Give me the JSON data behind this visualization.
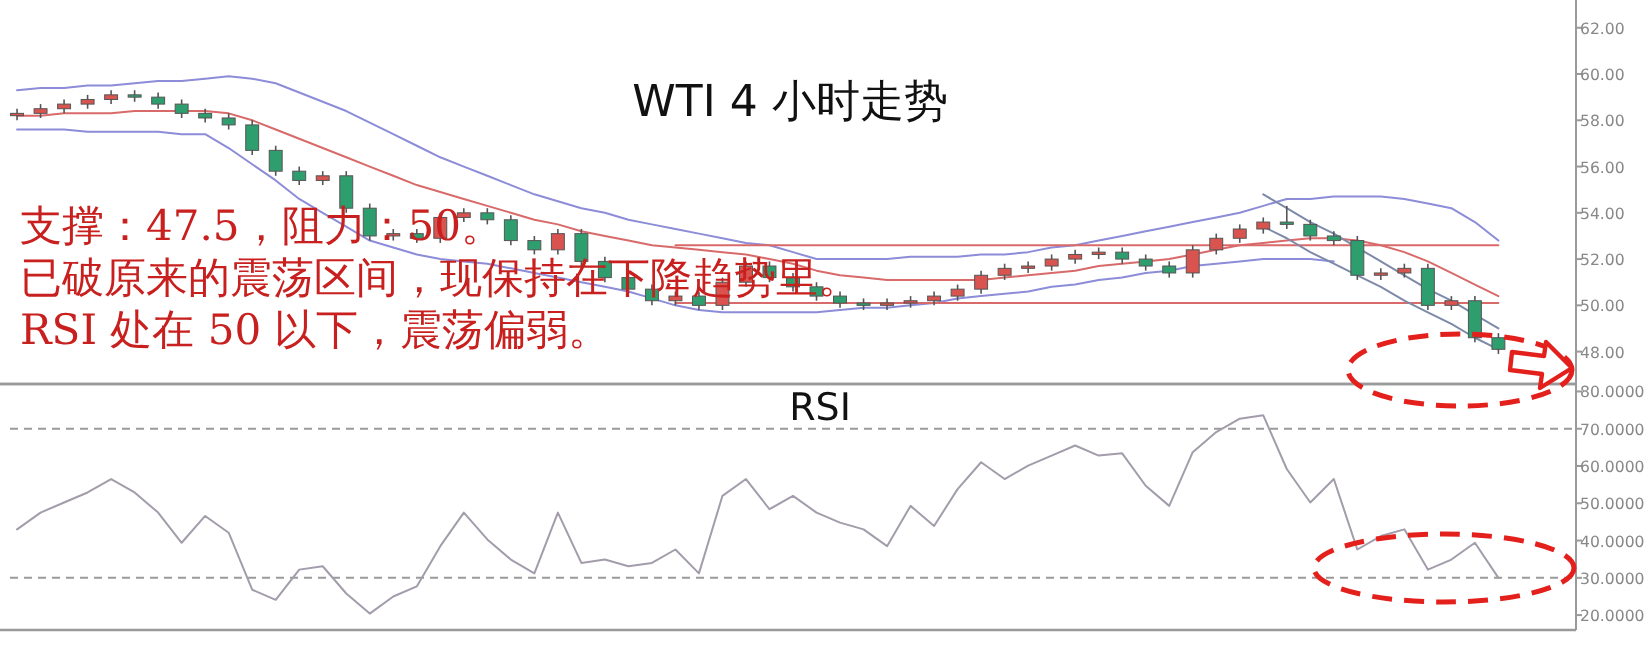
{
  "chart_data": [
    {
      "type": "candlestick",
      "title": "WTI 4 小时走势",
      "tick_labels": "y",
      "grid": false,
      "categories": [
        null,
        null,
        null,
        null,
        null,
        null,
        null,
        null,
        null,
        null,
        null,
        null,
        null,
        null,
        null,
        null,
        null,
        null,
        null,
        null,
        null,
        null,
        null,
        null,
        null,
        null,
        null,
        null,
        null,
        null,
        null,
        null,
        null,
        null,
        null,
        null,
        null,
        null,
        null,
        null,
        null,
        null,
        null,
        null,
        null,
        null,
        null,
        null,
        null,
        null,
        null,
        null,
        null,
        null,
        null,
        null,
        null,
        null,
        null,
        null,
        null,
        null,
        null,
        null
      ],
      "ohlc": [
        [
          58.2,
          58.5,
          58.0,
          58.3
        ],
        [
          58.3,
          58.7,
          58.1,
          58.5
        ],
        [
          58.5,
          58.9,
          58.3,
          58.7
        ],
        [
          58.7,
          59.1,
          58.5,
          58.9
        ],
        [
          58.9,
          59.3,
          58.7,
          59.1
        ],
        [
          59.1,
          59.3,
          58.8,
          59.0
        ],
        [
          59.0,
          59.2,
          58.5,
          58.7
        ],
        [
          58.7,
          58.9,
          58.1,
          58.3
        ],
        [
          58.3,
          58.5,
          57.9,
          58.1
        ],
        [
          58.1,
          58.3,
          57.6,
          57.8
        ],
        [
          57.8,
          58.0,
          56.5,
          56.7
        ],
        [
          56.7,
          56.9,
          55.6,
          55.8
        ],
        [
          55.8,
          56.0,
          55.2,
          55.4
        ],
        [
          55.4,
          55.8,
          55.2,
          55.6
        ],
        [
          55.6,
          55.8,
          54.0,
          54.2
        ],
        [
          54.2,
          54.4,
          52.8,
          53.0
        ],
        [
          53.0,
          53.3,
          52.8,
          53.1
        ],
        [
          53.1,
          53.3,
          52.7,
          52.9
        ],
        [
          52.9,
          54.0,
          52.7,
          53.8
        ],
        [
          53.8,
          54.2,
          53.6,
          54.0
        ],
        [
          54.0,
          54.2,
          53.5,
          53.7
        ],
        [
          53.7,
          53.9,
          52.6,
          52.8
        ],
        [
          52.8,
          53.0,
          52.2,
          52.4
        ],
        [
          52.4,
          53.3,
          52.2,
          53.1
        ],
        [
          53.1,
          53.3,
          51.7,
          51.9
        ],
        [
          51.9,
          52.1,
          51.0,
          51.2
        ],
        [
          51.2,
          51.4,
          50.5,
          50.7
        ],
        [
          50.7,
          50.9,
          50.0,
          50.2
        ],
        [
          50.2,
          50.6,
          50.0,
          50.4
        ],
        [
          50.4,
          50.6,
          49.8,
          50.0
        ],
        [
          50.0,
          51.2,
          49.8,
          51.0
        ],
        [
          51.0,
          51.9,
          50.8,
          51.7
        ],
        [
          51.7,
          51.9,
          51.0,
          51.2
        ],
        [
          51.2,
          51.4,
          50.6,
          50.8
        ],
        [
          50.8,
          51.0,
          50.2,
          50.4
        ],
        [
          50.4,
          50.6,
          49.9,
          50.1
        ],
        [
          50.1,
          50.3,
          49.8,
          50.0
        ],
        [
          50.0,
          50.3,
          49.8,
          50.1
        ],
        [
          50.1,
          50.4,
          49.9,
          50.2
        ],
        [
          50.2,
          50.6,
          50.0,
          50.4
        ],
        [
          50.4,
          50.9,
          50.2,
          50.7
        ],
        [
          50.7,
          51.5,
          50.5,
          51.3
        ],
        [
          51.3,
          51.8,
          51.1,
          51.6
        ],
        [
          51.6,
          51.9,
          51.4,
          51.7
        ],
        [
          51.7,
          52.2,
          51.5,
          52.0
        ],
        [
          52.0,
          52.4,
          51.8,
          52.2
        ],
        [
          52.2,
          52.5,
          52.0,
          52.3
        ],
        [
          52.3,
          52.5,
          51.8,
          52.0
        ],
        [
          52.0,
          52.2,
          51.5,
          51.7
        ],
        [
          51.7,
          51.9,
          51.2,
          51.4
        ],
        [
          51.4,
          52.6,
          51.2,
          52.4
        ],
        [
          52.4,
          53.1,
          52.2,
          52.9
        ],
        [
          52.9,
          53.5,
          52.7,
          53.3
        ],
        [
          53.3,
          53.8,
          53.1,
          53.6
        ],
        [
          53.6,
          54.3,
          53.3,
          53.5
        ],
        [
          53.5,
          53.7,
          52.8,
          53.0
        ],
        [
          53.0,
          53.2,
          52.6,
          52.8
        ],
        [
          52.8,
          53.0,
          51.1,
          51.3
        ],
        [
          51.3,
          51.6,
          51.1,
          51.4
        ],
        [
          51.4,
          51.8,
          51.2,
          51.6
        ],
        [
          51.6,
          51.8,
          49.8,
          50.0
        ],
        [
          50.0,
          50.4,
          49.8,
          50.2
        ],
        [
          50.2,
          50.4,
          48.4,
          48.6
        ],
        [
          48.6,
          48.8,
          47.9,
          48.1
        ]
      ],
      "series": [
        {
          "type": "line",
          "color": "#8c8cd8",
          "values": [
            59.3,
            59.4,
            59.4,
            59.5,
            59.5,
            59.6,
            59.7,
            59.7,
            59.8,
            59.9,
            59.8,
            59.6,
            59.2,
            58.8,
            58.4,
            57.9,
            57.4,
            56.9,
            56.4,
            56.0,
            55.6,
            55.2,
            54.8,
            54.5,
            54.2,
            54.0,
            53.7,
            53.5,
            53.3,
            53.1,
            52.9,
            52.7,
            52.6,
            52.3,
            52.0,
            52.0,
            52.0,
            52.0,
            52.1,
            52.1,
            52.1,
            52.2,
            52.2,
            52.3,
            52.5,
            52.6,
            52.8,
            53.0,
            53.2,
            53.4,
            53.6,
            53.8,
            54.0,
            54.3,
            54.6,
            54.6,
            54.7,
            54.7,
            54.7,
            54.6,
            54.4,
            54.2,
            53.6,
            52.8
          ]
        },
        {
          "type": "line",
          "color": "#8c8cd8",
          "values": [
            57.6,
            57.6,
            57.6,
            57.5,
            57.5,
            57.5,
            57.5,
            57.4,
            57.4,
            56.8,
            56.1,
            55.4,
            54.6,
            54.0,
            53.4,
            52.8,
            52.5,
            52.2,
            52.0,
            51.9,
            51.8,
            51.6,
            51.4,
            51.2,
            51.0,
            50.8,
            50.6,
            50.3,
            50.0,
            49.8,
            49.7,
            49.7,
            49.7,
            49.7,
            49.7,
            49.8,
            49.9,
            49.9,
            50.0,
            50.1,
            50.3,
            50.4,
            50.5,
            50.6,
            50.8,
            50.9,
            51.1,
            51.2,
            51.4,
            51.5,
            51.7,
            51.8,
            51.9,
            52.0,
            52.0,
            52.0,
            51.9,
            null,
            null,
            null,
            null,
            null,
            null,
            null
          ]
        },
        {
          "type": "line",
          "color": "#d96a6a",
          "values": [
            58.2,
            58.2,
            58.3,
            58.3,
            58.3,
            58.4,
            58.4,
            58.4,
            58.4,
            58.3,
            58.0,
            57.6,
            57.2,
            56.8,
            56.4,
            56.0,
            55.6,
            55.2,
            54.9,
            54.6,
            54.3,
            54.0,
            53.7,
            53.5,
            53.2,
            53.0,
            52.8,
            52.6,
            52.5,
            52.4,
            52.3,
            52.2,
            52.0,
            51.8,
            51.5,
            51.3,
            51.2,
            51.1,
            51.1,
            51.1,
            51.1,
            51.1,
            51.2,
            51.3,
            51.4,
            51.5,
            51.7,
            51.8,
            51.9,
            52.0,
            52.2,
            52.4,
            52.6,
            52.7,
            52.8,
            52.9,
            52.9,
            52.8,
            52.6,
            52.3,
            51.9,
            51.4,
            50.9,
            50.4
          ]
        },
        {
          "type": "line",
          "color": "#d96a6a",
          "values": [
            null,
            null,
            null,
            null,
            null,
            null,
            null,
            null,
            null,
            null,
            null,
            null,
            null,
            null,
            null,
            null,
            null,
            null,
            null,
            null,
            null,
            null,
            null,
            null,
            null,
            null,
            null,
            null,
            52.6,
            52.6,
            52.6,
            52.6,
            52.6,
            52.6,
            52.6,
            52.6,
            52.6,
            52.6,
            52.6,
            52.6,
            52.6,
            52.6,
            52.6,
            52.6,
            52.6,
            52.6,
            52.6,
            52.6,
            52.6,
            52.6,
            52.6,
            52.6,
            52.6,
            52.6,
            52.6,
            52.6,
            52.6,
            52.6,
            52.6,
            52.6,
            52.6,
            52.6,
            52.6,
            52.6
          ]
        },
        {
          "type": "line",
          "color": "#d96a6a",
          "values": [
            null,
            null,
            null,
            null,
            null,
            null,
            null,
            null,
            null,
            null,
            null,
            null,
            null,
            null,
            null,
            null,
            null,
            null,
            null,
            null,
            null,
            null,
            null,
            null,
            null,
            null,
            null,
            null,
            50.1,
            50.1,
            50.1,
            50.1,
            50.1,
            50.1,
            50.1,
            50.1,
            50.1,
            50.1,
            50.1,
            50.1,
            50.1,
            50.1,
            50.1,
            50.1,
            50.1,
            50.1,
            50.1,
            50.1,
            50.1,
            50.1,
            50.1,
            50.1,
            50.1,
            50.1,
            50.1,
            50.1,
            50.1,
            50.1,
            50.1,
            50.1,
            50.1,
            50.1,
            50.1,
            50.1
          ]
        },
        {
          "type": "line",
          "color": "#7d8aa8",
          "values": [
            null,
            null,
            null,
            null,
            null,
            null,
            null,
            null,
            null,
            null,
            null,
            null,
            null,
            null,
            null,
            null,
            null,
            null,
            null,
            null,
            null,
            null,
            null,
            null,
            null,
            null,
            null,
            null,
            null,
            null,
            null,
            null,
            null,
            null,
            null,
            null,
            null,
            null,
            null,
            null,
            null,
            null,
            null,
            null,
            null,
            null,
            null,
            null,
            null,
            null,
            null,
            null,
            null,
            54.8,
            54.2,
            53.6,
            53.1,
            52.5,
            51.9,
            51.3,
            50.7,
            50.2,
            49.6,
            49.0
          ]
        },
        {
          "type": "line",
          "color": "#7d8aa8",
          "values": [
            null,
            null,
            null,
            null,
            null,
            null,
            null,
            null,
            null,
            null,
            null,
            null,
            null,
            null,
            null,
            null,
            null,
            null,
            null,
            null,
            null,
            null,
            null,
            null,
            null,
            null,
            null,
            null,
            null,
            null,
            null,
            null,
            null,
            null,
            null,
            null,
            null,
            null,
            null,
            null,
            null,
            null,
            null,
            null,
            null,
            null,
            null,
            null,
            null,
            null,
            null,
            null,
            null,
            53.4,
            52.9,
            52.3,
            51.8,
            51.3,
            50.8,
            50.2,
            49.7,
            49.2,
            48.6,
            48.1
          ]
        }
      ],
      "ylim": [
        46.6,
        63.2
      ],
      "yticks": [
        {
          "value": 48,
          "label": "48.00"
        },
        {
          "value": 50,
          "label": "50.00"
        },
        {
          "value": 52,
          "label": "52.00"
        },
        {
          "value": 54,
          "label": "54.00"
        },
        {
          "value": 56,
          "label": "56.00"
        },
        {
          "value": 58,
          "label": "58.00"
        },
        {
          "value": 60,
          "label": "60.00"
        },
        {
          "value": 62,
          "label": "62.00"
        }
      ],
      "annotations": [
        "支撑：47.5，阻力：50。",
        "已破原来的震荡区间，现保持在下降趋势里。",
        "RSI 处在 50 以下，震荡偏弱。"
      ]
    },
    {
      "type": "line",
      "title": "RSI",
      "tick_labels": "y",
      "grid": false,
      "categories": [
        null,
        null,
        null,
        null,
        null,
        null,
        null,
        null,
        null,
        null,
        null,
        null,
        null,
        null,
        null,
        null,
        null,
        null,
        null,
        null,
        null,
        null,
        null,
        null,
        null,
        null,
        null,
        null,
        null,
        null,
        null,
        null,
        null,
        null,
        null,
        null,
        null,
        null,
        null,
        null,
        null,
        null,
        null,
        null,
        null,
        null,
        null,
        null,
        null,
        null,
        null,
        null,
        null,
        null,
        null,
        null,
        null,
        null,
        null,
        null,
        null,
        null,
        null,
        null
      ],
      "series": [
        {
          "color": "#a39cab",
          "values": [
            43.0,
            47.5,
            50.2,
            52.9,
            56.5,
            52.9,
            47.5,
            39.4,
            46.6,
            42.1,
            26.8,
            24.1,
            32.2,
            33.1,
            25.8,
            20.4,
            25.0,
            27.7,
            38.5,
            47.5,
            40.3,
            34.9,
            31.2,
            47.5,
            34.0,
            34.9,
            33.1,
            34.0,
            37.6,
            31.2,
            52.0,
            56.5,
            48.4,
            52.0,
            47.5,
            44.8,
            43.0,
            38.5,
            49.3,
            43.9,
            53.8,
            61.0,
            56.5,
            60.1,
            62.8,
            65.5,
            62.8,
            63.4,
            54.7,
            49.3,
            63.7,
            69.1,
            72.7,
            73.6,
            59.2,
            50.2,
            56.5,
            37.6,
            41.2,
            43.0,
            32.2,
            34.9,
            39.4,
            30.0
          ]
        }
      ],
      "ylim": [
        16,
        82
      ],
      "yticks": [
        {
          "value": 20,
          "label": "20.0000"
        },
        {
          "value": 30,
          "label": "30.0000"
        },
        {
          "value": 40,
          "label": "40.0000"
        },
        {
          "value": 50,
          "label": "50.0000"
        },
        {
          "value": 60,
          "label": "60.0000"
        },
        {
          "value": 70,
          "label": "70.0000"
        },
        {
          "value": 80,
          "label": "80.0000"
        }
      ],
      "ref_lines": [
        {
          "axis": "y",
          "value": 70,
          "color": "#9a9a9a",
          "line_style": "dashed"
        },
        {
          "axis": "y",
          "value": 30,
          "color": "#9a9a9a",
          "line_style": "dashed"
        }
      ]
    }
  ]
}
